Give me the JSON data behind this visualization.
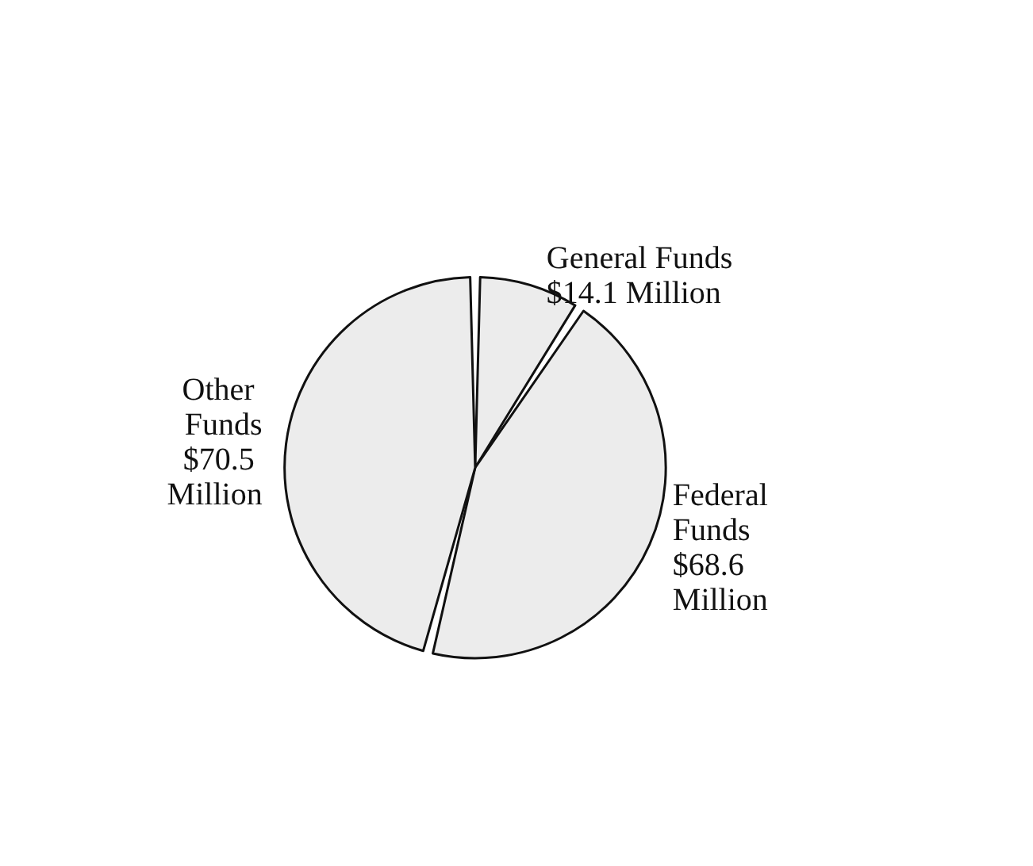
{
  "chart_data": {
    "type": "pie",
    "categories": [
      "General Funds",
      "Federal Funds",
      "Other Funds"
    ],
    "values": [
      14.1,
      68.6,
      70.5
    ],
    "colors": [
      "#ececec",
      "#ececec",
      "#ececec"
    ],
    "value_labels": [
      "$14.1 Million",
      "$68.6 Million",
      "$70.5 Million"
    ]
  }
}
